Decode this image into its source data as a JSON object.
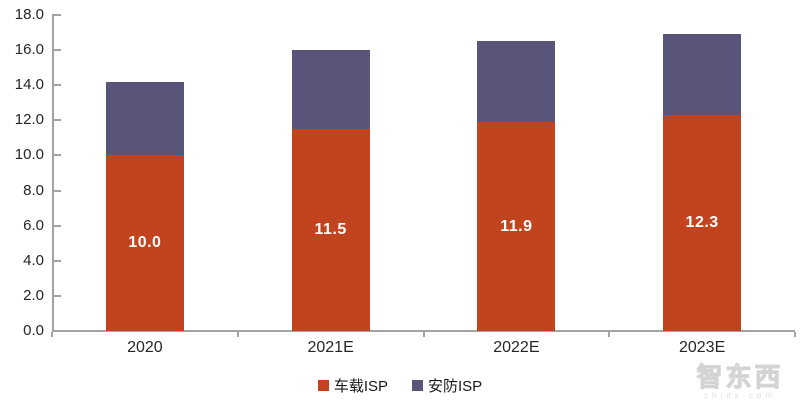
{
  "chart_data": {
    "type": "bar",
    "stacked": true,
    "title": "",
    "xlabel": "",
    "ylabel": "",
    "categories": [
      "2020",
      "2021E",
      "2022E",
      "2023E"
    ],
    "series": [
      {
        "name": "车载ISP",
        "color": "#c2441e",
        "values": [
          10.0,
          11.5,
          11.9,
          12.3
        ],
        "data_labels": [
          "10.0",
          "11.5",
          "11.9",
          "12.3"
        ],
        "data_label_color": "#ffffff"
      },
      {
        "name": "安防ISP",
        "color": "#59547a",
        "values": [
          4.2,
          4.5,
          4.6,
          4.6
        ],
        "data_labels": [
          "",
          "",
          "",
          ""
        ],
        "data_label_color": "#ffffff"
      }
    ],
    "stack_totals": [
      14.2,
      16.0,
      16.5,
      16.9
    ],
    "ylim": [
      0,
      18
    ],
    "y_tick_step": 2,
    "y_tick_labels": [
      "0.0",
      "2.0",
      "4.0",
      "6.0",
      "8.0",
      "10.0",
      "12.0",
      "14.0",
      "16.0",
      "18.0"
    ],
    "grid": false,
    "legend_position": "bottom"
  },
  "legend": {
    "items": [
      {
        "label": "车载ISP",
        "color": "#c2441e"
      },
      {
        "label": "安防ISP",
        "color": "#59547a"
      }
    ]
  },
  "watermark": {
    "text": "智东西",
    "subtext": "zhidx.com"
  },
  "colors": {
    "axis": "#a3a3a3",
    "tick_label": "#262626",
    "background": "#ffffff"
  }
}
